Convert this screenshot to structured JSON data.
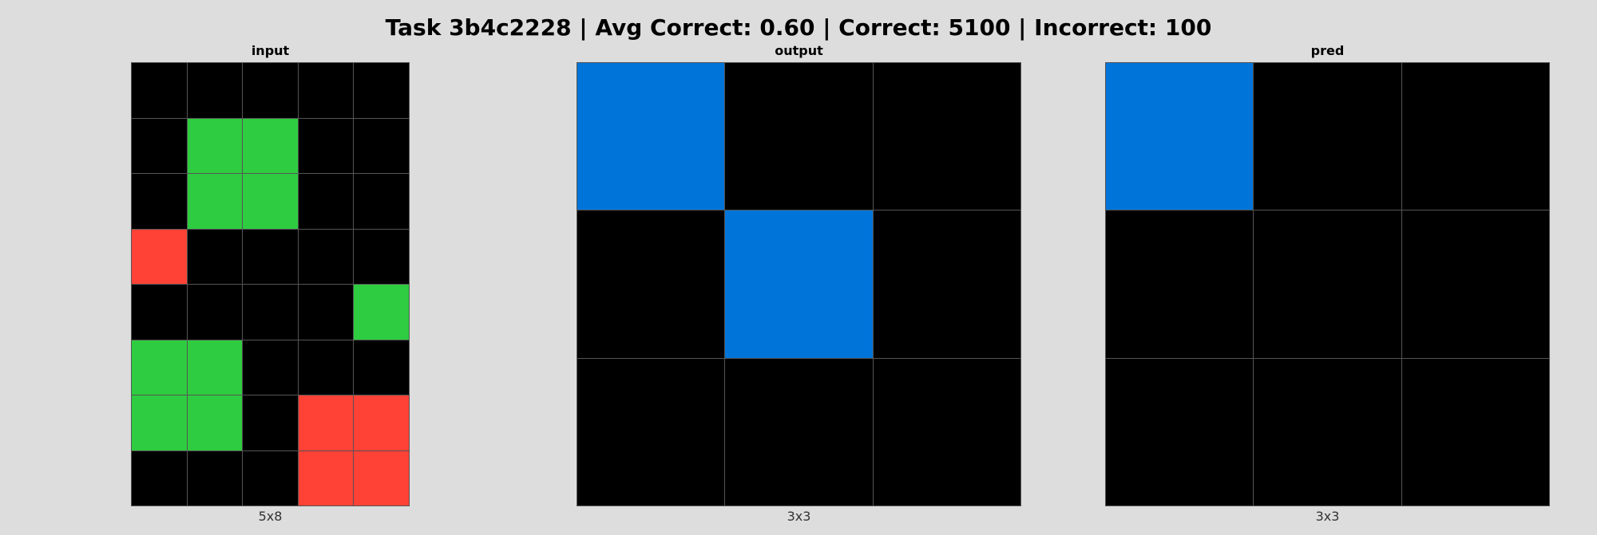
{
  "title": "Task 3b4c2228 | Avg Correct: 0.60 | Correct: 5100 | Incorrect: 100",
  "palette": {
    "0": "#000000",
    "1": "#0074D9",
    "2": "#FF4136",
    "3": "#2ECC40"
  },
  "panels": {
    "input": {
      "label": "input",
      "dims": "5x8",
      "grid": [
        [
          0,
          0,
          0,
          0,
          0
        ],
        [
          0,
          3,
          3,
          0,
          0
        ],
        [
          0,
          3,
          3,
          0,
          0
        ],
        [
          2,
          0,
          0,
          0,
          0
        ],
        [
          0,
          0,
          0,
          0,
          3
        ],
        [
          3,
          3,
          0,
          0,
          0
        ],
        [
          3,
          3,
          0,
          2,
          2
        ],
        [
          0,
          0,
          0,
          2,
          2
        ]
      ]
    },
    "output": {
      "label": "output",
      "dims": "3x3",
      "grid": [
        [
          1,
          0,
          0
        ],
        [
          0,
          1,
          0
        ],
        [
          0,
          0,
          0
        ]
      ]
    },
    "pred": {
      "label": "pred",
      "dims": "3x3",
      "grid": [
        [
          1,
          0,
          0
        ],
        [
          0,
          0,
          0
        ],
        [
          0,
          0,
          0
        ]
      ]
    }
  }
}
